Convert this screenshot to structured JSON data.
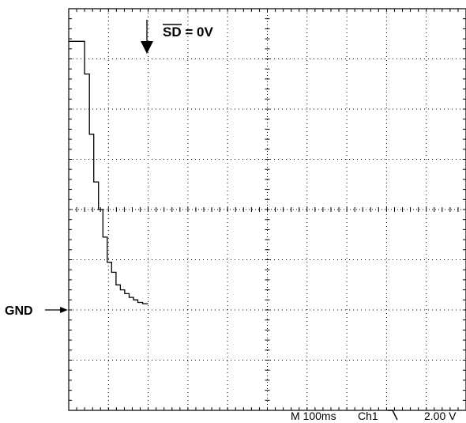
{
  "chart_data": {
    "type": "line",
    "title": "",
    "xlabel": "",
    "ylabel": "",
    "x_unit": "ms",
    "y_unit": "V",
    "time_per_div_ms": 100,
    "volts_per_div": 2.0,
    "divisions": {
      "x": 10,
      "y": 8
    },
    "xlim": [
      0,
      1000
    ],
    "ylim": [
      -6,
      10
    ],
    "grid": true,
    "series": [
      {
        "name": "",
        "color": "#000000",
        "points": [
          [
            0,
            8.7
          ],
          [
            40,
            8.7
          ],
          [
            40,
            7.4
          ],
          [
            52,
            7.4
          ],
          [
            52,
            5.0
          ],
          [
            63,
            5.0
          ],
          [
            63,
            3.1
          ],
          [
            75,
            3.1
          ],
          [
            75,
            2.0
          ],
          [
            86,
            2.0
          ],
          [
            86,
            0.9
          ],
          [
            97,
            0.9
          ],
          [
            97,
            -0.1
          ],
          [
            108,
            -0.1
          ],
          [
            108,
            -0.5
          ],
          [
            119,
            -0.5
          ],
          [
            119,
            -1.0
          ],
          [
            130,
            -1.0
          ],
          [
            130,
            -1.2
          ],
          [
            141,
            -1.2
          ],
          [
            141,
            -1.35
          ],
          [
            152,
            -1.35
          ],
          [
            152,
            -1.5
          ],
          [
            163,
            -1.5
          ],
          [
            163,
            -1.6
          ],
          [
            174,
            -1.6
          ],
          [
            174,
            -1.7
          ],
          [
            186,
            -1.7
          ],
          [
            186,
            -1.75
          ],
          [
            200,
            -1.75
          ]
        ]
      }
    ],
    "annotations": {
      "trigger_label": "SD = 0V",
      "trigger_label_overlined": "SD",
      "ground_label": "GND"
    },
    "status_bar": {
      "timebase": "M 100ms",
      "channel": "Ch1",
      "trigger_slope_icon": "falling-edge-icon",
      "scale": "2.00 V"
    }
  }
}
